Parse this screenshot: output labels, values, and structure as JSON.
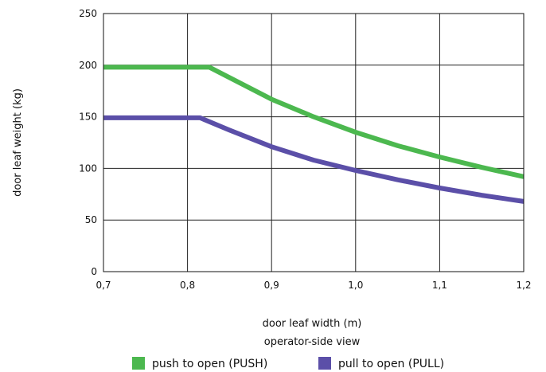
{
  "chart_data": {
    "type": "line",
    "title": "",
    "xlabel": "door leaf width (m)",
    "ylabel": "door leaf weight (kg)",
    "subtitle": "operator-side view",
    "xlim": [
      0.7,
      1.2
    ],
    "ylim": [
      0,
      250
    ],
    "x_ticks": [
      0.7,
      0.8,
      0.9,
      1.0,
      1.1,
      1.2
    ],
    "x_tick_labels": [
      "0,7",
      "0,8",
      "0,9",
      "1,0",
      "1,1",
      "1,2"
    ],
    "y_ticks": [
      0,
      50,
      100,
      150,
      200,
      250
    ],
    "y_tick_labels": [
      "0",
      "50",
      "100",
      "150",
      "200",
      "250"
    ],
    "grid": true,
    "legend_placement": "bottom",
    "series": [
      {
        "name": "push to open (PUSH)",
        "color": "#4cb84f",
        "x": [
          0.7,
          0.75,
          0.8,
          0.826,
          0.85,
          0.9,
          0.95,
          1.0,
          1.05,
          1.1,
          1.15,
          1.2
        ],
        "y": [
          198,
          198,
          198,
          198,
          188,
          167,
          150,
          135,
          122,
          111,
          101,
          92
        ]
      },
      {
        "name": "pull to open (PULL)",
        "color": "#5b4fa8",
        "x": [
          0.7,
          0.75,
          0.8,
          0.815,
          0.85,
          0.9,
          0.95,
          1.0,
          1.05,
          1.1,
          1.15,
          1.2
        ],
        "y": [
          149,
          149,
          149,
          149,
          137,
          121,
          108,
          98,
          89,
          81,
          74,
          68
        ]
      }
    ]
  }
}
